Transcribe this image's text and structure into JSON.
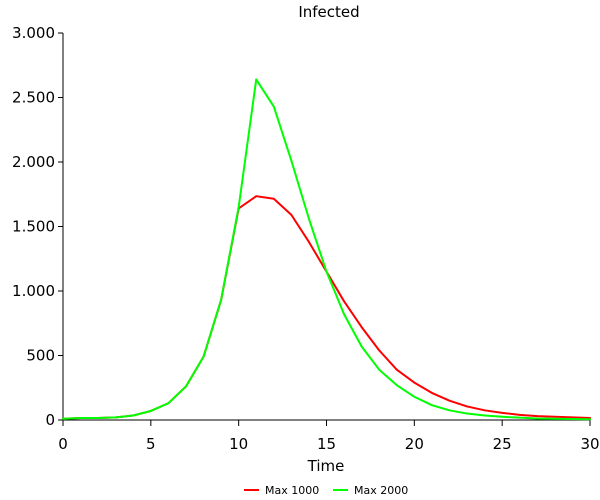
{
  "chart_data": {
    "type": "line",
    "title": "Infected",
    "xlabel": "Time",
    "ylabel": "",
    "xlim": [
      0,
      30
    ],
    "ylim": [
      0,
      3000
    ],
    "xticks": [
      0,
      5,
      10,
      15,
      20,
      25,
      30
    ],
    "yticks": [
      0,
      500,
      1000,
      1500,
      2000,
      2500,
      3000
    ],
    "xtick_labels": [
      "0",
      "5",
      "10",
      "15",
      "20",
      "25",
      "30"
    ],
    "ytick_labels": [
      "0",
      "500",
      "1.000",
      "1.500",
      "2.000",
      "2.500",
      "3.000"
    ],
    "grid": false,
    "legend_position": "bottom",
    "x": [
      0,
      1,
      2,
      3,
      4,
      5,
      6,
      7,
      8,
      9,
      10,
      11,
      12,
      13,
      14,
      15,
      16,
      17,
      18,
      19,
      20,
      21,
      22,
      23,
      24,
      25,
      26,
      27,
      28,
      29,
      30
    ],
    "series": [
      {
        "name": "Max 1000",
        "color": "#ff0000",
        "values": [
          10,
          15,
          15,
          20,
          35,
          70,
          130,
          260,
          490,
          930,
          1640,
          1735,
          1715,
          1590,
          1380,
          1150,
          920,
          720,
          540,
          390,
          290,
          210,
          150,
          105,
          75,
          55,
          40,
          30,
          25,
          20,
          15
        ]
      },
      {
        "name": "Max 2000",
        "color": "#00ff00",
        "values": [
          10,
          15,
          15,
          20,
          35,
          70,
          130,
          260,
          490,
          930,
          1650,
          2640,
          2430,
          2010,
          1560,
          1150,
          820,
          570,
          390,
          270,
          180,
          115,
          75,
          50,
          35,
          25,
          18,
          12,
          10,
          8,
          6
        ]
      }
    ]
  }
}
